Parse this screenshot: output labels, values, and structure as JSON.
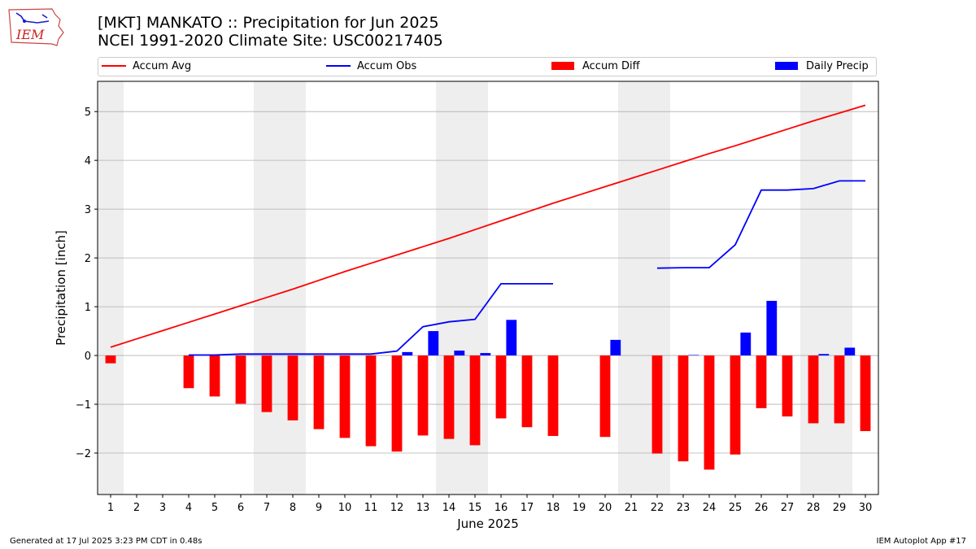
{
  "header": {
    "title_line1": "[MKT] MANKATO :: Precipitation for Jun 2025",
    "title_line2": "NCEI 1991-2020 Climate Site: USC00217405"
  },
  "logo": {
    "text": "IEM",
    "icon": "iowa-map-logo"
  },
  "footer": {
    "generated": "Generated at 17 Jul 2025 3:23 PM CDT in 0.48s",
    "app": "IEM Autoplot App #17"
  },
  "colors": {
    "avg": "#ff0000",
    "obs": "#0000ff",
    "diff": "#ff0000",
    "daily": "#0000ff",
    "weekend": "#eeeeee",
    "grid": "#b0b0b0"
  },
  "chart_data": {
    "type": "bar",
    "xlabel": "June 2025",
    "ylabel": "Precipitation [inch]",
    "ylim": [
      -2.85,
      5.62
    ],
    "xlim": [
      0.5,
      30.5
    ],
    "yticks": [
      -2,
      -1,
      0,
      1,
      2,
      3,
      4,
      5
    ],
    "ytick_labels": [
      "−2",
      "−1",
      "0",
      "1",
      "2",
      "3",
      "4",
      "5"
    ],
    "xticks": [
      1,
      2,
      3,
      4,
      5,
      6,
      7,
      8,
      9,
      10,
      11,
      12,
      13,
      14,
      15,
      16,
      17,
      18,
      19,
      20,
      21,
      22,
      23,
      24,
      25,
      26,
      27,
      28,
      29,
      30
    ],
    "grid": true,
    "legend_position": "top",
    "weekend_bands": [
      [
        0.5,
        1.5
      ],
      [
        6.5,
        8.5
      ],
      [
        13.5,
        15.5
      ],
      [
        20.5,
        22.5
      ],
      [
        27.5,
        29.5
      ]
    ],
    "days": [
      1,
      2,
      3,
      4,
      5,
      6,
      7,
      8,
      9,
      10,
      11,
      12,
      13,
      14,
      15,
      16,
      17,
      18,
      19,
      20,
      21,
      22,
      23,
      24,
      25,
      26,
      27,
      28,
      29,
      30
    ],
    "series": [
      {
        "name": "Accum Avg",
        "kind": "line",
        "values": [
          0.17,
          0.34,
          0.51,
          0.68,
          0.85,
          1.02,
          1.19,
          1.36,
          1.54,
          1.72,
          1.89,
          2.06,
          2.23,
          2.4,
          2.58,
          2.76,
          2.94,
          3.12,
          3.29,
          3.46,
          3.63,
          3.8,
          3.97,
          4.14,
          4.3,
          4.47,
          4.64,
          4.81,
          4.97,
          5.13
        ]
      },
      {
        "name": "Accum Obs",
        "kind": "line",
        "values": [
          null,
          null,
          null,
          0.01,
          0.01,
          0.03,
          0.03,
          0.03,
          0.03,
          0.03,
          0.03,
          0.09,
          0.59,
          0.69,
          0.74,
          1.47,
          1.47,
          1.47,
          null,
          null,
          null,
          1.79,
          1.8,
          1.8,
          2.27,
          3.39,
          3.39,
          3.42,
          3.58,
          3.58
        ]
      },
      {
        "name": "Accum Diff",
        "kind": "bar",
        "values": [
          -0.16,
          null,
          null,
          -0.67,
          -0.84,
          -0.99,
          -1.16,
          -1.33,
          -1.51,
          -1.69,
          -1.86,
          -1.97,
          -1.64,
          -1.71,
          -1.84,
          -1.29,
          -1.47,
          -1.65,
          null,
          -1.67,
          null,
          -2.01,
          -2.17,
          -2.34,
          -2.03,
          -1.08,
          -1.25,
          -1.39,
          -1.39,
          -1.55
        ]
      },
      {
        "name": "Daily Precip",
        "kind": "bar",
        "values": [
          0,
          0,
          0,
          0,
          0,
          0,
          0,
          0,
          0,
          0,
          0,
          0.07,
          0.5,
          0.1,
          0.05,
          0.73,
          0,
          0,
          0,
          0.32,
          0,
          0,
          0.01,
          0,
          0.47,
          1.12,
          0,
          0.03,
          0.16,
          0
        ]
      }
    ]
  }
}
